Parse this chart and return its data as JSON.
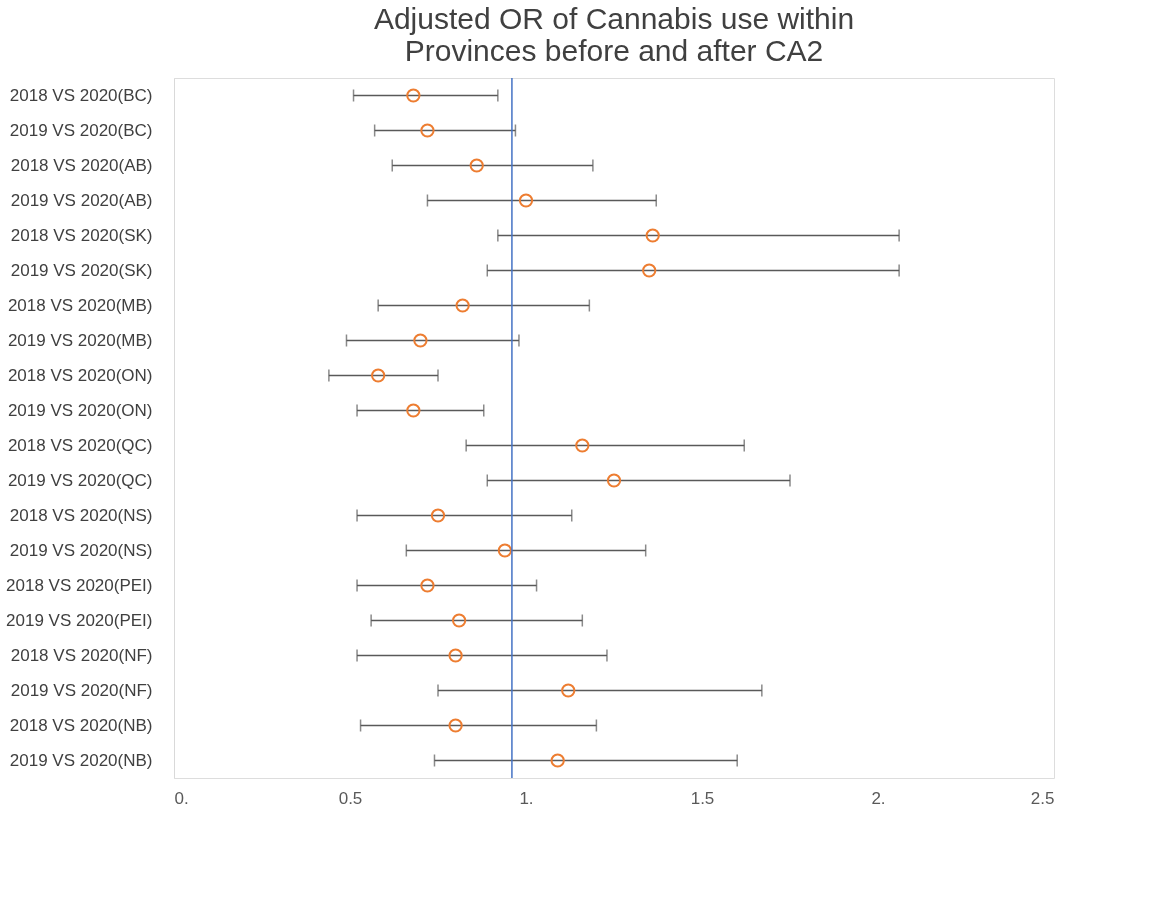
{
  "chart_data": {
    "type": "scatter",
    "orientation": "horizontal",
    "title": "Adjusted OR of Cannabis use within Provinces before and after CA2",
    "categories": [
      "2018 VS 2020(BC)",
      "2019 VS 2020(BC)",
      "2018 VS 2020(AB)",
      "2019 VS 2020(AB)",
      "2018 VS 2020(SK)",
      "2019 VS 2020(SK)",
      "2018 VS 2020(MB)",
      "2019 VS 2020(MB)",
      "2018 VS 2020(ON)",
      "2019 VS 2020(ON)",
      "2018 VS 2020(QC)",
      "2019 VS 2020(QC)",
      "2018 VS 2020(NS)",
      "2019 VS 2020(NS)",
      "2018 VS 2020(PEI)",
      "2019 VS 2020(PEI)",
      "2018 VS 2020(NF)",
      "2019 VS 2020(NF)",
      "2018 VS 2020(NB)",
      "2019 VS 2020(NB)"
    ],
    "values": [
      0.68,
      0.72,
      0.86,
      1.0,
      1.36,
      1.35,
      0.82,
      0.7,
      0.58,
      0.68,
      1.16,
      1.25,
      0.75,
      0.94,
      0.72,
      0.81,
      0.8,
      1.12,
      0.8,
      1.09
    ],
    "errors": [
      [
        0.51,
        0.92
      ],
      [
        0.57,
        0.97
      ],
      [
        0.62,
        1.19
      ],
      [
        0.72,
        1.37
      ],
      [
        0.92,
        2.06
      ],
      [
        0.89,
        2.06
      ],
      [
        0.58,
        1.18
      ],
      [
        0.49,
        0.98
      ],
      [
        0.44,
        0.75
      ],
      [
        0.52,
        0.88
      ],
      [
        0.83,
        1.62
      ],
      [
        0.89,
        1.75
      ],
      [
        0.52,
        1.13
      ],
      [
        0.66,
        1.34
      ],
      [
        0.52,
        1.03
      ],
      [
        0.56,
        1.16
      ],
      [
        0.52,
        1.23
      ],
      [
        0.75,
        1.67
      ],
      [
        0.53,
        1.2
      ],
      [
        0.74,
        1.6
      ]
    ],
    "color": "#ed7d31",
    "marker": "circle",
    "xlim": [
      0,
      2.5
    ],
    "xticks": [
      {
        "value": 0,
        "label": "0."
      },
      0.5,
      {
        "value": 1,
        "label": "1."
      },
      1.5,
      {
        "value": 2,
        "label": "2."
      },
      2.5
    ],
    "ref_lines": [
      {
        "axis": "x",
        "value": 0.96,
        "color": "#4472c4"
      }
    ],
    "grid": false
  }
}
